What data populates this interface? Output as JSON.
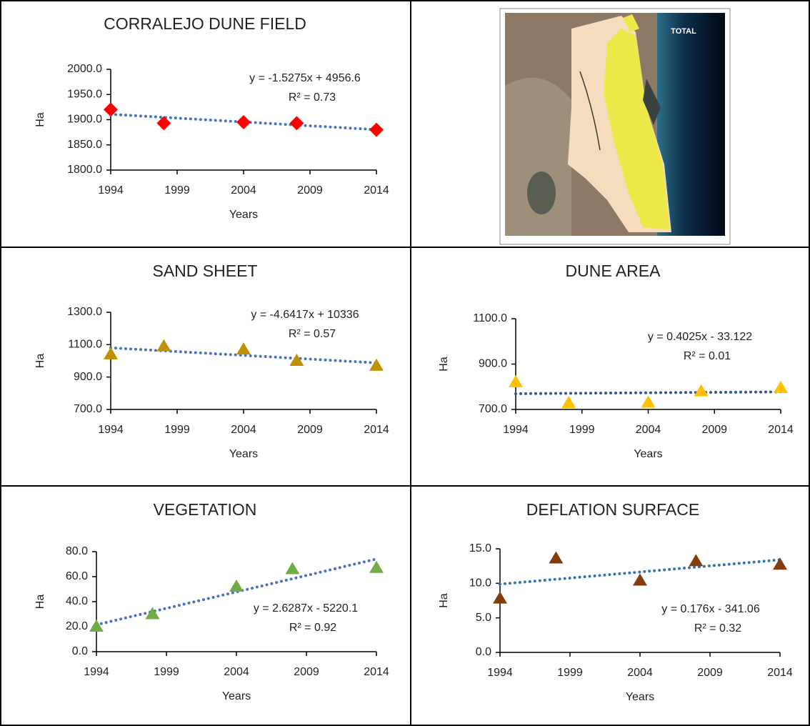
{
  "chart_data": [
    {
      "type": "scatter",
      "title": "CORRALEJO DUNE FIELD",
      "x_label": "Years",
      "y_label": "Ha",
      "x": [
        1994,
        1998,
        2004,
        2008,
        2014
      ],
      "values": [
        1920,
        1893,
        1895,
        1893,
        1880
      ],
      "color": "#ff0000",
      "marker": "diamond",
      "xlim": [
        1994,
        2014
      ],
      "xticks": [
        1994,
        1999,
        2004,
        2009,
        2014
      ],
      "ylim": [
        1800,
        2000
      ],
      "yticks": [
        {
          "value": 1800,
          "label": "1800.0"
        },
        {
          "value": 1850,
          "label": "1850.0"
        },
        {
          "value": 1900,
          "label": "1900.0"
        },
        {
          "value": 1950,
          "label": "1950.0"
        },
        {
          "value": 2000,
          "label": "2000.0"
        }
      ],
      "trendline": {
        "equation": "y = -1.5275x + 4956.6",
        "r2": "R² = 0.73",
        "slope": -1.5275,
        "intercept": 4956.6,
        "color": "#4472c4"
      }
    },
    {
      "type": "scatter",
      "title": "SAND SHEET",
      "x_label": "Years",
      "y_label": "Ha",
      "x": [
        1994,
        1998,
        2004,
        2008,
        2014
      ],
      "values": [
        1040,
        1090,
        1070,
        1000,
        970
      ],
      "color": "#bf9000",
      "marker": "triangle",
      "xlim": [
        1994,
        2014
      ],
      "xticks": [
        1994,
        1999,
        2004,
        2009,
        2014
      ],
      "ylim": [
        700,
        1300
      ],
      "yticks": [
        {
          "value": 700,
          "label": "700.0"
        },
        {
          "value": 900,
          "label": "900.0"
        },
        {
          "value": 1100,
          "label": "1100.0"
        },
        {
          "value": 1300,
          "label": "1300.0"
        }
      ],
      "trendline": {
        "equation": "y = -4.6417x + 10336",
        "r2": "R² = 0.57",
        "slope": -4.6417,
        "intercept": 10336,
        "color": "#4472c4"
      }
    },
    {
      "type": "scatter",
      "title": "DUNE AREA",
      "x_label": "Years",
      "y_label": "Ha",
      "x": [
        1994,
        1998,
        2004,
        2008,
        2014
      ],
      "values": [
        820,
        728,
        730,
        780,
        795
      ],
      "color": "#ffc000",
      "marker": "triangle",
      "xlim": [
        1994,
        2014
      ],
      "xticks": [
        1994,
        1999,
        2004,
        2009,
        2014
      ],
      "ylim": [
        700,
        1100
      ],
      "yticks": [
        {
          "value": 700,
          "label": "700.0"
        },
        {
          "value": 900,
          "label": "900.0"
        },
        {
          "value": 1100,
          "label": "1100.0"
        }
      ],
      "trendline": {
        "equation": "y = 0.4025x - 33.122",
        "r2": "R² = 0.01",
        "slope": 0.4025,
        "intercept": -33.122,
        "color": "#2f5597"
      }
    },
    {
      "type": "scatter",
      "title": "VEGETATION",
      "x_label": "Years",
      "y_label": "Ha",
      "x": [
        1994,
        1998,
        2004,
        2008,
        2014
      ],
      "values": [
        20,
        30,
        52,
        66,
        67
      ],
      "color": "#70ad47",
      "marker": "triangle",
      "xlim": [
        1994,
        2014
      ],
      "xticks": [
        1994,
        1999,
        2004,
        2009,
        2014
      ],
      "ylim": [
        0,
        80
      ],
      "yticks": [
        {
          "value": 0,
          "label": "0.0"
        },
        {
          "value": 20,
          "label": "20.0"
        },
        {
          "value": 40,
          "label": "40.0"
        },
        {
          "value": 60,
          "label": "60.0"
        },
        {
          "value": 80,
          "label": "80.0"
        }
      ],
      "trendline": {
        "equation": "y = 2.6287x - 5220.1",
        "r2": "R² = 0.92",
        "slope": 2.6287,
        "intercept": -5220.1,
        "color": "#4472c4"
      }
    },
    {
      "type": "scatter",
      "title": "DEFLATION SURFACE",
      "x_label": "Years",
      "y_label": "Ha",
      "x": [
        1994,
        1998,
        2004,
        2008,
        2014
      ],
      "values": [
        7.8,
        13.6,
        10.4,
        13.2,
        12.7
      ],
      "color": "#843c0c",
      "marker": "triangle",
      "xlim": [
        1994,
        2014
      ],
      "xticks": [
        1994,
        1999,
        2004,
        2009,
        2014
      ],
      "ylim": [
        0,
        15
      ],
      "yticks": [
        {
          "value": 0,
          "label": "0.0"
        },
        {
          "value": 5,
          "label": "5.0"
        },
        {
          "value": 10,
          "label": "10.0"
        },
        {
          "value": 15,
          "label": "15.0"
        }
      ],
      "trendline": {
        "equation": "y = 0.176x - 341.06",
        "r2": "R² = 0.32",
        "slope": 0.176,
        "intercept": -341.06,
        "color": "#2e75b6"
      }
    }
  ],
  "map": {
    "label": "TOTAL"
  }
}
